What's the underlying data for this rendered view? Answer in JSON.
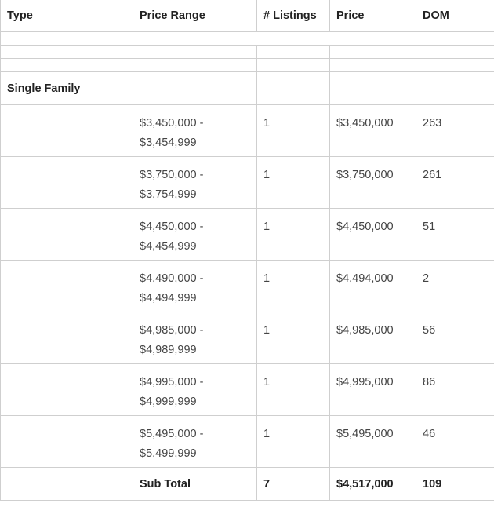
{
  "headers": [
    "Type",
    "Price Range",
    "# Listings",
    "Price",
    "DOM"
  ],
  "group": "Single Family",
  "rows": [
    {
      "range_low": "$3,450,000 -",
      "range_high": "$3,454,999",
      "listings": "1",
      "price": "$3,450,000",
      "dom": "263"
    },
    {
      "range_low": "$3,750,000 -",
      "range_high": "$3,754,999",
      "listings": "1",
      "price": "$3,750,000",
      "dom": "261"
    },
    {
      "range_low": "$4,450,000 -",
      "range_high": "$4,454,999",
      "listings": "1",
      "price": "$4,450,000",
      "dom": "51"
    },
    {
      "range_low": "$4,490,000 -",
      "range_high": "$4,494,999",
      "listings": "1",
      "price": "$4,494,000",
      "dom": "2"
    },
    {
      "range_low": "$4,985,000 -",
      "range_high": "$4,989,999",
      "listings": "1",
      "price": "$4,985,000",
      "dom": "56"
    },
    {
      "range_low": "$4,995,000 -",
      "range_high": "$4,999,999",
      "listings": "1",
      "price": "$4,995,000",
      "dom": "86"
    },
    {
      "range_low": "$5,495,000 -",
      "range_high": "$5,499,999",
      "listings": "1",
      "price": "$5,495,000",
      "dom": "46"
    }
  ],
  "subtotal": {
    "label": "Sub Total",
    "listings": "7",
    "price": "$4,517,000",
    "dom": "109"
  }
}
